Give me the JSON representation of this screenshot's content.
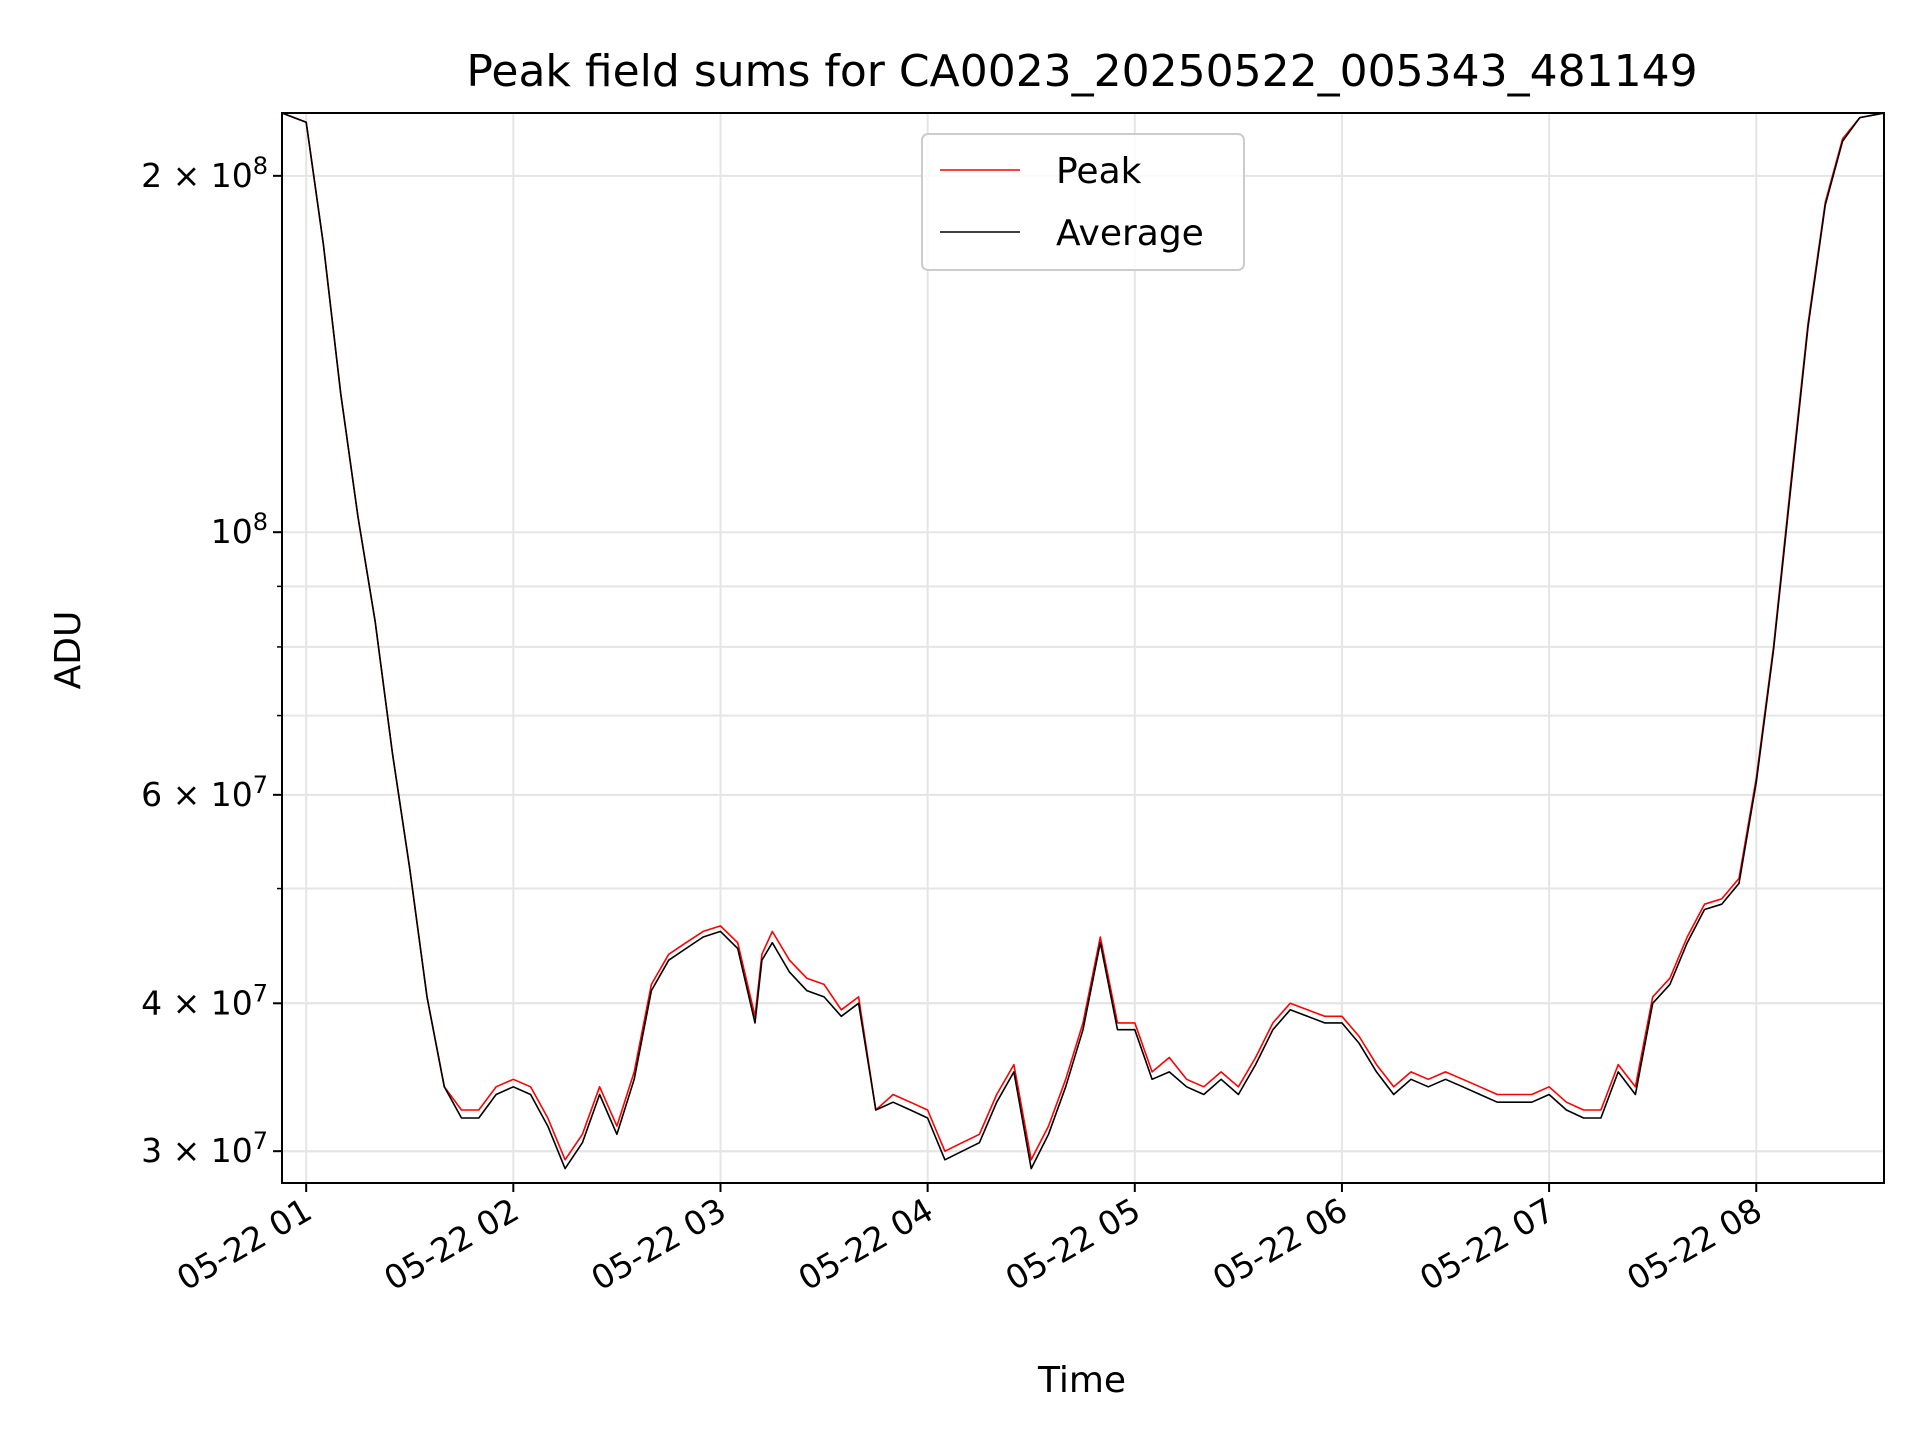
{
  "chart_data": {
    "type": "line",
    "title": "Peak field sums for CA0023_20250522_005343_481149",
    "xlabel": "Time",
    "ylabel": "ADU",
    "yscale": "log",
    "xlim": [
      "2025-05-22 00:53",
      "2025-05-22 08:37"
    ],
    "ylim": [
      28200000,
      226000000
    ],
    "grid": true,
    "legend": "upper center",
    "x_ticks": [
      "05-22 01",
      "05-22 02",
      "05-22 03",
      "05-22 04",
      "05-22 05",
      "05-22 06",
      "05-22 07",
      "05-22 08"
    ],
    "y_ticks": [
      {
        "value": 30000000,
        "base": "3 × 10",
        "exp": "7"
      },
      {
        "value": 40000000,
        "base": "4 × 10",
        "exp": "7"
      },
      {
        "value": 60000000,
        "base": "6 × 10",
        "exp": "7"
      },
      {
        "value": 100000000,
        "base": "10",
        "exp": "8"
      },
      {
        "value": 200000000,
        "base": "2 × 10",
        "exp": "8"
      }
    ],
    "x": [
      "00:53",
      "01:00",
      "01:05",
      "01:10",
      "01:15",
      "01:20",
      "01:25",
      "01:30",
      "01:35",
      "01:40",
      "01:45",
      "01:50",
      "01:55",
      "02:00",
      "02:05",
      "02:10",
      "02:15",
      "02:20",
      "02:25",
      "02:30",
      "02:35",
      "02:40",
      "02:45",
      "02:50",
      "02:55",
      "03:00",
      "03:05",
      "03:10",
      "03:12",
      "03:15",
      "03:20",
      "03:25",
      "03:30",
      "03:35",
      "03:40",
      "03:45",
      "03:50",
      "03:55",
      "04:00",
      "04:05",
      "04:10",
      "04:15",
      "04:20",
      "04:25",
      "04:30",
      "04:35",
      "04:40",
      "04:45",
      "04:50",
      "04:55",
      "05:00",
      "05:05",
      "05:10",
      "05:15",
      "05:20",
      "05:25",
      "05:30",
      "05:35",
      "05:40",
      "05:45",
      "05:50",
      "05:55",
      "06:00",
      "06:05",
      "06:10",
      "06:15",
      "06:20",
      "06:25",
      "06:30",
      "06:35",
      "06:40",
      "06:45",
      "06:50",
      "06:55",
      "07:00",
      "07:05",
      "07:10",
      "07:15",
      "07:20",
      "07:25",
      "07:30",
      "07:35",
      "07:40",
      "07:45",
      "07:50",
      "07:55",
      "08:00",
      "08:05",
      "08:10",
      "08:15",
      "08:20",
      "08:25",
      "08:30",
      "08:37"
    ],
    "series": [
      {
        "name": "Peak",
        "color": "#ff0000",
        "values": [
          226000000,
          222000000,
          175000000,
          131000000,
          103000000,
          84000000,
          65000000,
          52000000,
          40500000,
          34000000,
          32500000,
          32500000,
          34000000,
          34500000,
          34000000,
          32000000,
          29500000,
          31000000,
          34000000,
          31500000,
          35000000,
          41500000,
          44000000,
          45000000,
          46000000,
          46500000,
          45000000,
          39000000,
          44000000,
          46000000,
          43500000,
          42000000,
          41500000,
          39500000,
          40500000,
          32500000,
          33500000,
          33000000,
          32500000,
          30000000,
          30500000,
          31000000,
          33500000,
          35500000,
          29500000,
          31500000,
          34500000,
          38500000,
          45500000,
          38500000,
          38500000,
          35000000,
          36000000,
          34500000,
          34000000,
          35000000,
          34000000,
          36000000,
          38500000,
          40000000,
          39500000,
          39000000,
          39000000,
          37500000,
          35500000,
          34000000,
          35000000,
          34500000,
          35000000,
          34500000,
          34000000,
          33500000,
          33500000,
          33500000,
          34000000,
          33000000,
          32500000,
          32500000,
          35500000,
          34000000,
          40500000,
          42000000,
          45500000,
          48500000,
          49000000,
          51000000,
          62000000,
          80000000,
          110000000,
          150000000,
          190000000,
          215000000,
          224000000,
          226000000
        ]
      },
      {
        "name": "Average",
        "color": "#000000",
        "values": [
          226000000,
          222000000,
          175000000,
          131000000,
          103000000,
          84000000,
          65000000,
          52000000,
          40500000,
          34000000,
          32000000,
          32000000,
          33500000,
          34000000,
          33500000,
          31500000,
          29000000,
          30500000,
          33500000,
          31000000,
          34500000,
          41000000,
          43500000,
          44500000,
          45500000,
          46000000,
          44500000,
          38500000,
          43500000,
          45000000,
          42500000,
          41000000,
          40500000,
          39000000,
          40000000,
          32500000,
          33000000,
          32500000,
          32000000,
          29500000,
          30000000,
          30500000,
          33000000,
          35000000,
          29000000,
          31000000,
          34000000,
          38000000,
          45000000,
          38000000,
          38000000,
          34500000,
          35000000,
          34000000,
          33500000,
          34500000,
          33500000,
          35500000,
          38000000,
          39500000,
          39000000,
          38500000,
          38500000,
          37000000,
          35000000,
          33500000,
          34500000,
          34000000,
          34500000,
          34000000,
          33500000,
          33000000,
          33000000,
          33000000,
          33500000,
          32500000,
          32000000,
          32000000,
          35000000,
          33500000,
          40000000,
          41500000,
          45000000,
          48000000,
          48500000,
          50500000,
          61500000,
          79500000,
          109000000,
          149000000,
          189000000,
          214000000,
          224000000,
          226000000
        ]
      }
    ]
  }
}
